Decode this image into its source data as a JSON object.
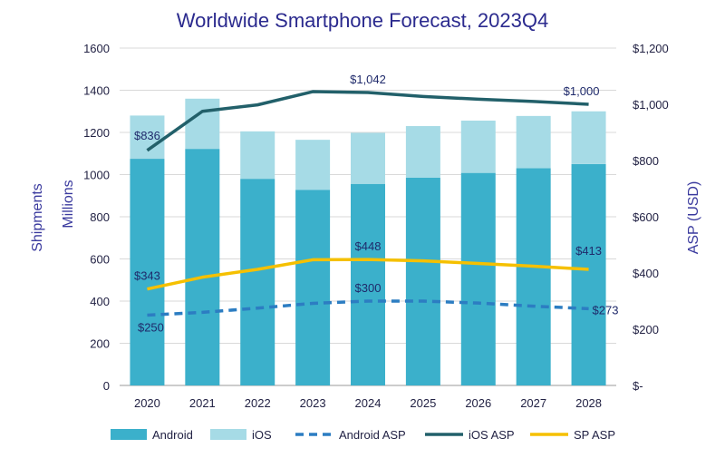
{
  "chart_data": {
    "type": "bar",
    "title": "Worldwide Smartphone Forecast, 2023Q4",
    "categories": [
      "2020",
      "2021",
      "2022",
      "2023",
      "2024",
      "2025",
      "2026",
      "2027",
      "2028"
    ],
    "bar_series": [
      {
        "name": "Android",
        "values": [
          1075,
          1122,
          980,
          928,
          956,
          985,
          1008,
          1030,
          1050
        ],
        "color": "#3BB0CB"
      },
      {
        "name": "iOS",
        "values": [
          205,
          238,
          225,
          237,
          242,
          245,
          248,
          248,
          250
        ],
        "color": "#A6DBE6"
      }
    ],
    "line_series": [
      {
        "name": "Android ASP",
        "values": [
          250,
          260,
          275,
          292,
          300,
          300,
          293,
          282,
          273
        ],
        "color": "#2C7DC2",
        "style": "dashed"
      },
      {
        "name": "iOS ASP",
        "values": [
          836,
          975,
          998,
          1045,
          1042,
          1028,
          1018,
          1010,
          1000
        ],
        "color": "#22606A",
        "style": "solid"
      },
      {
        "name": "SP ASP",
        "values": [
          343,
          385,
          413,
          447,
          448,
          443,
          434,
          424,
          413
        ],
        "color": "#F5C000",
        "style": "solid"
      }
    ],
    "y_left": {
      "label_outer": "Shipments",
      "label_inner": "Millions",
      "ylim": [
        0,
        1600
      ],
      "ticks": [
        "0",
        "200",
        "400",
        "600",
        "800",
        "1000",
        "1200",
        "1400",
        "1600"
      ]
    },
    "y_right": {
      "label": "ASP (USD)",
      "ylim": [
        0,
        1200
      ],
      "ticks": [
        "$-",
        "$200",
        "$400",
        "$600",
        "$800",
        "$1,000",
        "$1,200"
      ]
    },
    "data_labels": [
      {
        "series": "iOS ASP",
        "index": 0,
        "text": "$836"
      },
      {
        "series": "iOS ASP",
        "index": 4,
        "text": "$1,042"
      },
      {
        "series": "iOS ASP",
        "index": 8,
        "text": "$1,000"
      },
      {
        "series": "SP ASP",
        "index": 0,
        "text": "$343"
      },
      {
        "series": "SP ASP",
        "index": 4,
        "text": "$448"
      },
      {
        "series": "SP ASP",
        "index": 8,
        "text": "$413"
      },
      {
        "series": "Android ASP",
        "index": 0,
        "text": "$250"
      },
      {
        "series": "Android ASP",
        "index": 4,
        "text": "$300"
      },
      {
        "series": "Android ASP",
        "index": 8,
        "text": "$273"
      }
    ],
    "grid": true,
    "legend_placement": "bottom"
  }
}
